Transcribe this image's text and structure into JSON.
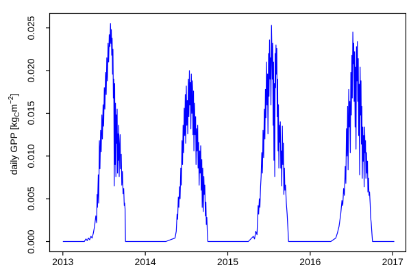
{
  "figure": {
    "background": "#ffffff",
    "box_color": "#000000",
    "tick_color": "#000000",
    "ylabel_parts": {
      "prefix": "daily GPP [kg",
      "sub": "C",
      "mid": "m",
      "sup": "−2",
      "suffix": "]"
    }
  },
  "chart_data": {
    "type": "line",
    "title": "",
    "xlabel": "",
    "ylabel": "daily GPP [kg_C m^-2]",
    "legend": null,
    "grid": false,
    "line_color": "#0000ff",
    "xlim": [
      2012.84,
      2017.16
    ],
    "ylim": [
      -0.0012,
      0.0267
    ],
    "xticks": [
      {
        "value": 2013,
        "label": "2013"
      },
      {
        "value": 2014,
        "label": "2014"
      },
      {
        "value": 2015,
        "label": "2015"
      },
      {
        "value": 2016,
        "label": "2016"
      },
      {
        "value": 2017,
        "label": "2017"
      }
    ],
    "yticks": [
      {
        "value": 0.0,
        "label": "0.000"
      },
      {
        "value": 0.005,
        "label": "0.005"
      },
      {
        "value": 0.01,
        "label": "0.010"
      },
      {
        "value": 0.015,
        "label": "0.015"
      },
      {
        "value": 0.02,
        "label": "0.020"
      },
      {
        "value": 0.025,
        "label": "0.025"
      }
    ],
    "series": [
      {
        "name": "daily GPP",
        "points": [
          [
            2013.0,
            0
          ],
          [
            2013.1,
            0
          ],
          [
            2013.2,
            0
          ],
          [
            2013.26,
            0
          ],
          [
            2013.28,
            0.0003
          ],
          [
            2013.295,
            0.0001
          ],
          [
            2013.31,
            0.0004
          ],
          [
            2013.325,
            0.0002
          ],
          [
            2013.34,
            0.0006
          ],
          [
            2013.355,
            0.0004
          ],
          [
            2013.37,
            0.001
          ],
          [
            2013.385,
            0.0018
          ],
          [
            2013.4,
            0.003
          ],
          [
            2013.41,
            0.0022
          ],
          [
            2013.415,
            0.0055
          ],
          [
            2013.42,
            0.004
          ],
          [
            2013.43,
            0.0078
          ],
          [
            2013.435,
            0.0045
          ],
          [
            2013.443,
            0.0118
          ],
          [
            2013.45,
            0.0085
          ],
          [
            2013.458,
            0.013
          ],
          [
            2013.465,
            0.0105
          ],
          [
            2013.473,
            0.0148
          ],
          [
            2013.48,
            0.012
          ],
          [
            2013.488,
            0.016
          ],
          [
            2013.495,
            0.0135
          ],
          [
            2013.503,
            0.018
          ],
          [
            2013.51,
            0.0155
          ],
          [
            2013.518,
            0.0198
          ],
          [
            2013.525,
            0.0172
          ],
          [
            2013.533,
            0.0215
          ],
          [
            2013.54,
            0.0188
          ],
          [
            2013.548,
            0.0232
          ],
          [
            2013.555,
            0.021
          ],
          [
            2013.563,
            0.0242
          ],
          [
            2013.57,
            0.0228
          ],
          [
            2013.578,
            0.0255
          ],
          [
            2013.583,
            0.0232
          ],
          [
            2013.588,
            0.0248
          ],
          [
            2013.593,
            0.0218
          ],
          [
            2013.598,
            0.0238
          ],
          [
            2013.603,
            0.0196
          ],
          [
            2013.608,
            0.0225
          ],
          [
            2013.613,
            0.0168
          ],
          [
            2013.618,
            0.019
          ],
          [
            2013.623,
            0.0065
          ],
          [
            2013.628,
            0.0185
          ],
          [
            2013.633,
            0.009
          ],
          [
            2013.638,
            0.0162
          ],
          [
            2013.643,
            0.0076
          ],
          [
            2013.648,
            0.0148
          ],
          [
            2013.653,
            0.0115
          ],
          [
            2013.658,
            0.0155
          ],
          [
            2013.663,
            0.008
          ],
          [
            2013.668,
            0.0126
          ],
          [
            2013.673,
            0.0095
          ],
          [
            2013.678,
            0.0136
          ],
          [
            2013.683,
            0.0076
          ],
          [
            2013.688,
            0.011
          ],
          [
            2013.695,
            0.0125
          ],
          [
            2013.7,
            0.0085
          ],
          [
            2013.708,
            0.0102
          ],
          [
            2013.715,
            0.0066
          ],
          [
            2013.723,
            0.0082
          ],
          [
            2013.73,
            0.0056
          ],
          [
            2013.738,
            0.0062
          ],
          [
            2013.745,
            0.0042
          ],
          [
            2013.75,
            0.0045
          ],
          [
            2013.755,
            0.0038
          ],
          [
            2013.76,
            0
          ],
          [
            2013.85,
            0
          ],
          [
            2014.0,
            0
          ],
          [
            2014.25,
            0
          ],
          [
            2014.36,
            0.0004
          ],
          [
            2014.375,
            0.0012
          ],
          [
            2014.385,
            0.0032
          ],
          [
            2014.392,
            0.0026
          ],
          [
            2014.4,
            0.0052
          ],
          [
            2014.407,
            0.004
          ],
          [
            2014.415,
            0.0064
          ],
          [
            2014.422,
            0.005
          ],
          [
            2014.43,
            0.0086
          ],
          [
            2014.437,
            0.0066
          ],
          [
            2014.445,
            0.0118
          ],
          [
            2014.452,
            0.009
          ],
          [
            2014.458,
            0.0136
          ],
          [
            2014.465,
            0.0104
          ],
          [
            2014.472,
            0.0156
          ],
          [
            2014.478,
            0.0124
          ],
          [
            2014.485,
            0.0172
          ],
          [
            2014.49,
            0.0115
          ],
          [
            2014.497,
            0.0182
          ],
          [
            2014.503,
            0.0136
          ],
          [
            2014.51,
            0.0165
          ],
          [
            2014.515,
            0.0126
          ],
          [
            2014.522,
            0.019
          ],
          [
            2014.528,
            0.0146
          ],
          [
            2014.535,
            0.02
          ],
          [
            2014.54,
            0.016
          ],
          [
            2014.547,
            0.0186
          ],
          [
            2014.552,
            0.0132
          ],
          [
            2014.558,
            0.0196
          ],
          [
            2014.565,
            0.015
          ],
          [
            2014.572,
            0.0188
          ],
          [
            2014.578,
            0.0125
          ],
          [
            2014.585,
            0.0176
          ],
          [
            2014.59,
            0.0106
          ],
          [
            2014.597,
            0.0162
          ],
          [
            2014.603,
            0.0125
          ],
          [
            2014.61,
            0.0146
          ],
          [
            2014.615,
            0.009
          ],
          [
            2014.622,
            0.0132
          ],
          [
            2014.628,
            0.0106
          ],
          [
            2014.635,
            0.0136
          ],
          [
            2014.64,
            0.0086
          ],
          [
            2014.647,
            0.0116
          ],
          [
            2014.653,
            0.0066
          ],
          [
            2014.66,
            0.0106
          ],
          [
            2014.665,
            0.008
          ],
          [
            2014.672,
            0.0112
          ],
          [
            2014.678,
            0.006
          ],
          [
            2014.685,
            0.0096
          ],
          [
            2014.69,
            0.004
          ],
          [
            2014.697,
            0.0086
          ],
          [
            2014.703,
            0.0035
          ],
          [
            2014.71,
            0.0076
          ],
          [
            2014.715,
            0.0055
          ],
          [
            2014.722,
            0.0066
          ],
          [
            2014.728,
            0.003
          ],
          [
            2014.735,
            0.0046
          ],
          [
            2014.74,
            0.002
          ],
          [
            2014.747,
            0.0028
          ],
          [
            2014.752,
            0.0012
          ],
          [
            2014.758,
            0
          ],
          [
            2014.85,
            0
          ],
          [
            2015.0,
            0
          ],
          [
            2015.25,
            0
          ],
          [
            2015.31,
            0.0006
          ],
          [
            2015.325,
            0.0003
          ],
          [
            2015.34,
            0.0012
          ],
          [
            2015.355,
            0.0008
          ],
          [
            2015.368,
            0.0042
          ],
          [
            2015.375,
            0.0032
          ],
          [
            2015.383,
            0.005
          ],
          [
            2015.39,
            0.004
          ],
          [
            2015.398,
            0.0064
          ],
          [
            2015.405,
            0.0076
          ],
          [
            2015.413,
            0.0104
          ],
          [
            2015.42,
            0.008
          ],
          [
            2015.428,
            0.013
          ],
          [
            2015.435,
            0.0098
          ],
          [
            2015.443,
            0.0155
          ],
          [
            2015.45,
            0.012
          ],
          [
            2015.457,
            0.0178
          ],
          [
            2015.463,
            0.0145
          ],
          [
            2015.47,
            0.021
          ],
          [
            2015.476,
            0.016
          ],
          [
            2015.483,
            0.0196
          ],
          [
            2015.488,
            0.0126
          ],
          [
            2015.495,
            0.022
          ],
          [
            2015.5,
            0.017
          ],
          [
            2015.507,
            0.0236
          ],
          [
            2015.513,
            0.019
          ],
          [
            2015.518,
            0.0215
          ],
          [
            2015.523,
            0.016
          ],
          [
            2015.53,
            0.0253
          ],
          [
            2015.535,
            0.0226
          ],
          [
            2015.54,
            0.019
          ],
          [
            2015.545,
            0.0232
          ],
          [
            2015.55,
            0.0136
          ],
          [
            2015.555,
            0.021
          ],
          [
            2015.56,
            0.0095
          ],
          [
            2015.565,
            0.0185
          ],
          [
            2015.57,
            0.0076
          ],
          [
            2015.575,
            0.022
          ],
          [
            2015.58,
            0.018
          ],
          [
            2015.585,
            0.023
          ],
          [
            2015.59,
            0.0196
          ],
          [
            2015.595,
            0.0226
          ],
          [
            2015.6,
            0.0146
          ],
          [
            2015.605,
            0.019
          ],
          [
            2015.61,
            0.0106
          ],
          [
            2015.615,
            0.016
          ],
          [
            2015.62,
            0.0086
          ],
          [
            2015.625,
            0.0136
          ],
          [
            2015.63,
            0.0116
          ],
          [
            2015.637,
            0.014
          ],
          [
            2015.643,
            0.0086
          ],
          [
            2015.65,
            0.0106
          ],
          [
            2015.655,
            0.0065
          ],
          [
            2015.662,
            0.0135
          ],
          [
            2015.668,
            0.009
          ],
          [
            2015.675,
            0.0115
          ],
          [
            2015.68,
            0.0055
          ],
          [
            2015.687,
            0.0086
          ],
          [
            2015.693,
            0.006
          ],
          [
            2015.7,
            0.0066
          ],
          [
            2015.71,
            0.0045
          ],
          [
            2015.72,
            0.0032
          ],
          [
            2015.73,
            0.0014
          ],
          [
            2015.737,
            0
          ],
          [
            2015.85,
            0
          ],
          [
            2016.0,
            0
          ],
          [
            2016.25,
            0
          ],
          [
            2016.31,
            0.0004
          ],
          [
            2016.33,
            0.001
          ],
          [
            2016.35,
            0.0018
          ],
          [
            2016.37,
            0.0032
          ],
          [
            2016.385,
            0.0048
          ],
          [
            2016.395,
            0.0042
          ],
          [
            2016.405,
            0.0062
          ],
          [
            2016.415,
            0.0054
          ],
          [
            2016.425,
            0.0088
          ],
          [
            2016.432,
            0.0068
          ],
          [
            2016.44,
            0.0132
          ],
          [
            2016.447,
            0.01
          ],
          [
            2016.454,
            0.0158
          ],
          [
            2016.46,
            0.0084
          ],
          [
            2016.467,
            0.0178
          ],
          [
            2016.473,
            0.0134
          ],
          [
            2016.48,
            0.0164
          ],
          [
            2016.486,
            0.0104
          ],
          [
            2016.493,
            0.0198
          ],
          [
            2016.499,
            0.0148
          ],
          [
            2016.505,
            0.0218
          ],
          [
            2016.51,
            0.0168
          ],
          [
            2016.517,
            0.0245
          ],
          [
            2016.523,
            0.0208
          ],
          [
            2016.528,
            0.0232
          ],
          [
            2016.533,
            0.0164
          ],
          [
            2016.539,
            0.0222
          ],
          [
            2016.544,
            0.0134
          ],
          [
            2016.55,
            0.0204
          ],
          [
            2016.555,
            0.0108
          ],
          [
            2016.561,
            0.0228
          ],
          [
            2016.566,
            0.0188
          ],
          [
            2016.572,
            0.0234
          ],
          [
            2016.577,
            0.0164
          ],
          [
            2016.583,
            0.0214
          ],
          [
            2016.588,
            0.0124
          ],
          [
            2016.594,
            0.0184
          ],
          [
            2016.599,
            0.0078
          ],
          [
            2016.605,
            0.0204
          ],
          [
            2016.61,
            0.0148
          ],
          [
            2016.616,
            0.0188
          ],
          [
            2016.621,
            0.0114
          ],
          [
            2016.627,
            0.0158
          ],
          [
            2016.632,
            0.0074
          ],
          [
            2016.638,
            0.0134
          ],
          [
            2016.643,
            0.0094
          ],
          [
            2016.649,
            0.0124
          ],
          [
            2016.654,
            0.0064
          ],
          [
            2016.66,
            0.0134
          ],
          [
            2016.665,
            0.0104
          ],
          [
            2016.671,
            0.0118
          ],
          [
            2016.676,
            0.0074
          ],
          [
            2016.682,
            0.0104
          ],
          [
            2016.688,
            0.008
          ],
          [
            2016.695,
            0.0094
          ],
          [
            2016.7,
            0.0058
          ],
          [
            2016.707,
            0.0074
          ],
          [
            2016.713,
            0.0054
          ],
          [
            2016.72,
            0.0058
          ],
          [
            2016.727,
            0.0044
          ],
          [
            2016.733,
            0.0028
          ],
          [
            2016.74,
            0.0022
          ],
          [
            2016.748,
            0.001
          ],
          [
            2016.755,
            0
          ],
          [
            2016.85,
            0
          ],
          [
            2017.0,
            0
          ],
          [
            2017.02,
            0
          ]
        ]
      }
    ]
  }
}
